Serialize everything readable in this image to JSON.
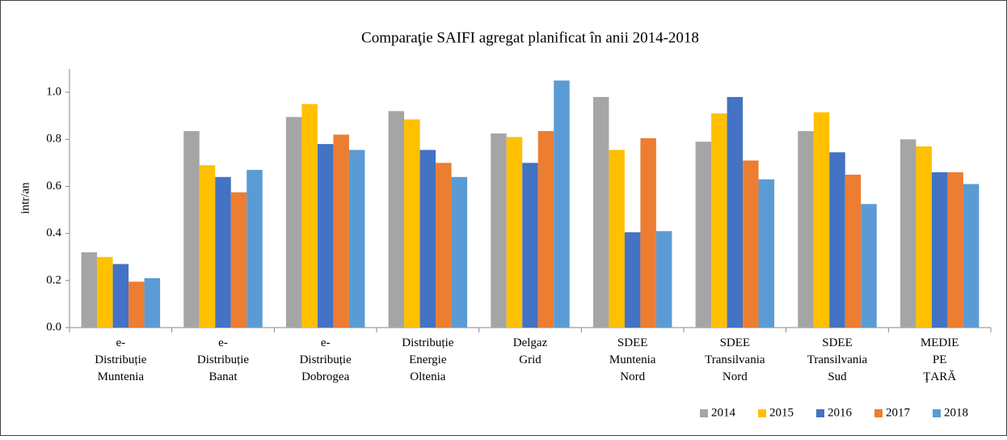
{
  "chart_data": {
    "type": "bar",
    "title": "Comparaţie SAIFI agregat planificat în anii 2014-2018",
    "y_label": "intr/an",
    "categories": [
      "e-\nDistribuție\nMuntenia",
      "e-\nDistribuție\nBanat",
      "e-\nDistribuție\nDobrogea",
      "Distribuție\nEnergie\nOltenia",
      "Delgaz\nGrid",
      "SDEE\nMuntenia\nNord",
      "SDEE\nTransilvania\nNord",
      "SDEE\nTransilvania\nSud",
      "MEDIE\nPE\nŢARĂ"
    ],
    "series": [
      {
        "name": "2014",
        "color": "#a5a5a5",
        "values": [
          0.32,
          0.835,
          0.895,
          0.92,
          0.825,
          0.98,
          0.79,
          0.835,
          0.8
        ]
      },
      {
        "name": "2015",
        "color": "#ffc000",
        "values": [
          0.3,
          0.69,
          0.95,
          0.885,
          0.81,
          0.755,
          0.91,
          0.915,
          0.77
        ]
      },
      {
        "name": "2016",
        "color": "#4472c4",
        "values": [
          0.27,
          0.64,
          0.78,
          0.755,
          0.7,
          0.405,
          0.98,
          0.745,
          0.66
        ]
      },
      {
        "name": "2017",
        "color": "#ed7d31",
        "values": [
          0.195,
          0.575,
          0.82,
          0.7,
          0.835,
          0.805,
          0.71,
          0.65,
          0.66
        ]
      },
      {
        "name": "2018",
        "color": "#5b9bd5",
        "values": [
          0.21,
          0.67,
          0.755,
          0.64,
          1.05,
          0.41,
          0.63,
          0.525,
          0.61
        ]
      }
    ],
    "ylim": [
      0,
      1.1
    ],
    "yticks": [
      {
        "value": 0,
        "label": "0.0"
      },
      0.2,
      0.4,
      0.6,
      0.8,
      {
        "value": 1,
        "label": "1.0"
      }
    ],
    "legend": "bottom-right"
  }
}
